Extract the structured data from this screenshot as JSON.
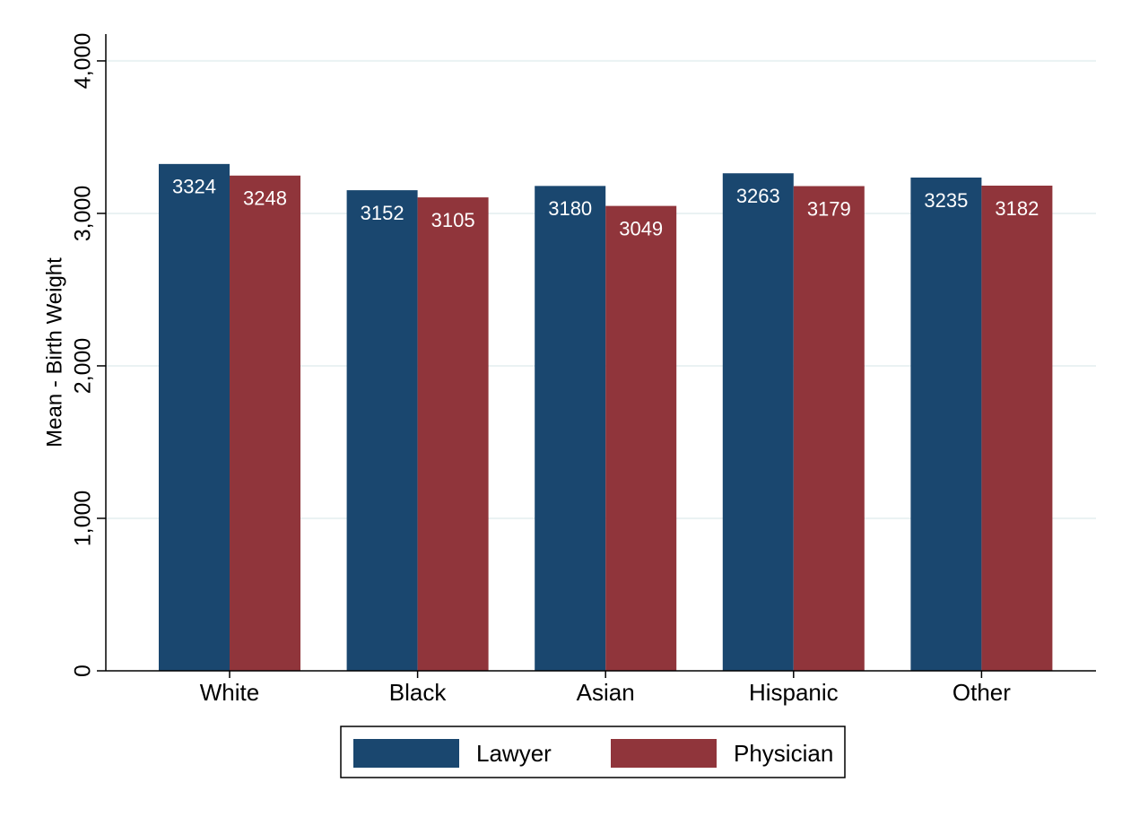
{
  "chart_data": {
    "type": "bar",
    "y_label": "Mean - Birth Weight",
    "categories": [
      "White",
      "Black",
      "Asian",
      "Hispanic",
      "Other"
    ],
    "series": [
      {
        "name": "Lawyer",
        "color": "#1a476f",
        "values": [
          3324,
          3152,
          3180,
          3263,
          3235
        ]
      },
      {
        "name": "Physician",
        "color": "#90353b",
        "values": [
          3248,
          3105,
          3049,
          3179,
          3182
        ]
      }
    ],
    "ylim": [
      0,
      4176
    ],
    "yticks": [
      0,
      {
        "value": 1000,
        "label": "1,000"
      },
      {
        "value": 2000,
        "label": "2,000"
      },
      {
        "value": 3000,
        "label": "3,000"
      },
      {
        "value": 4000,
        "label": "4,000"
      }
    ],
    "grid": true,
    "legend": "bottom"
  }
}
